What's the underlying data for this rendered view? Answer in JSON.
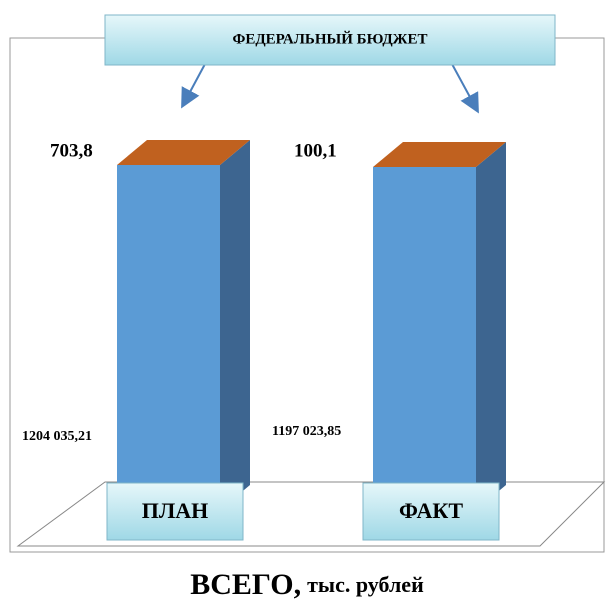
{
  "chart_data": {
    "type": "bar3d",
    "header": "ФЕДЕРАЛЬНЫЙ БЮДЖЕТ",
    "title": "ВСЕГО,",
    "unit": "тыс. рублей",
    "categories": [
      "ПЛАН",
      "ФАКТ"
    ],
    "values": [
      1204035.21,
      1197023.85
    ],
    "value_labels": [
      "1204 035,21",
      "1197 023,85"
    ],
    "annotations": [
      "703,8",
      "100,1"
    ],
    "colors": {
      "front": "#5b9bd5",
      "side": "#3d6590",
      "top": "#c0611f"
    }
  }
}
